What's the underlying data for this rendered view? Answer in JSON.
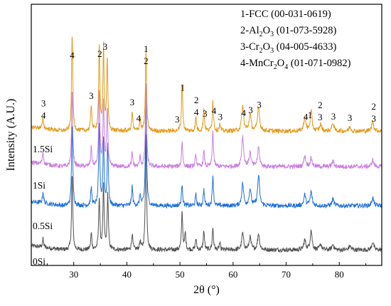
{
  "chart_data": {
    "type": "line",
    "xlabel": "2θ (°)",
    "ylabel": "Intensity (A.U.)",
    "xlim": [
      22,
      88
    ],
    "xticks": [
      "30",
      "40",
      "50",
      "60",
      "70",
      "80"
    ],
    "yticks": [],
    "grid": false,
    "legend_position": "top-right",
    "legend": [
      {
        "index": "1",
        "sep": "-",
        "phase": "FCC",
        "sub": "",
        "post": "",
        "card": " (00-031-0619)"
      },
      {
        "index": "2",
        "sep": "-",
        "phase": "Al",
        "sub": "2",
        "post": "O",
        "sub2": "3",
        "card": " (01-073-5928)"
      },
      {
        "index": "3",
        "sep": "-",
        "phase": "Cr",
        "sub": "2",
        "post": "O",
        "sub2": "3",
        "card": " (04-005-4633)"
      },
      {
        "index": "4",
        "sep": "-",
        "phase": "MnCr",
        "sub": "2",
        "post": "O",
        "sub2": "4",
        "card": " (01-071-0982)"
      }
    ],
    "series": [
      {
        "name": "0Si",
        "color": "#505050",
        "offset": 0,
        "scale": 1.0,
        "peaks": [
          [
            24.2,
            6
          ],
          [
            29.7,
            55
          ],
          [
            33.3,
            12
          ],
          [
            34.8,
            38
          ],
          [
            35.6,
            46
          ],
          [
            36.4,
            40
          ],
          [
            41.0,
            12
          ],
          [
            42.5,
            6
          ],
          [
            43.6,
            85
          ],
          [
            50.4,
            28
          ],
          [
            51.0,
            12
          ],
          [
            53.0,
            8
          ],
          [
            54.5,
            14
          ],
          [
            56.2,
            16
          ],
          [
            57.5,
            5
          ],
          [
            61.8,
            12
          ],
          [
            63.2,
            9
          ],
          [
            64.8,
            12
          ],
          [
            73.5,
            7
          ],
          [
            74.7,
            14
          ],
          [
            76.5,
            4
          ],
          [
            78.8,
            4
          ],
          [
            82.0,
            3
          ],
          [
            86.3,
            6
          ]
        ]
      },
      {
        "name": "0.5Si",
        "color": "#1f6fd8",
        "offset": 1,
        "scale": 1.0,
        "peaks": [
          [
            24.2,
            8
          ],
          [
            29.7,
            60
          ],
          [
            33.3,
            13
          ],
          [
            34.8,
            60
          ],
          [
            35.6,
            48
          ],
          [
            36.4,
            45
          ],
          [
            41.0,
            14
          ],
          [
            42.5,
            8
          ],
          [
            43.6,
            80
          ],
          [
            50.4,
            16
          ],
          [
            53.0,
            8
          ],
          [
            54.5,
            12
          ],
          [
            56.2,
            22
          ],
          [
            61.8,
            16
          ],
          [
            63.2,
            12
          ],
          [
            64.8,
            22
          ],
          [
            73.5,
            8
          ],
          [
            74.7,
            10
          ],
          [
            78.8,
            5
          ],
          [
            86.3,
            6
          ]
        ]
      },
      {
        "name": "1Si",
        "color": "#c87fe0",
        "offset": 2,
        "scale": 1.0,
        "peaks": [
          [
            24.2,
            9
          ],
          [
            29.7,
            55
          ],
          [
            33.3,
            14
          ],
          [
            34.8,
            55
          ],
          [
            35.6,
            45
          ],
          [
            36.3,
            42
          ],
          [
            41.0,
            10
          ],
          [
            42.5,
            7
          ],
          [
            43.6,
            60
          ],
          [
            50.4,
            18
          ],
          [
            53.0,
            9
          ],
          [
            54.5,
            11
          ],
          [
            56.2,
            26
          ],
          [
            61.8,
            22
          ],
          [
            63.2,
            10
          ],
          [
            64.8,
            14
          ],
          [
            73.5,
            8
          ],
          [
            74.7,
            6
          ],
          [
            78.8,
            4
          ],
          [
            86.3,
            5
          ]
        ]
      },
      {
        "name": "1.5Si",
        "color": "#e39a1c",
        "offset": 3,
        "scale": 1.0,
        "peaks": [
          [
            24.2,
            7
          ],
          [
            29.7,
            72
          ],
          [
            33.3,
            18
          ],
          [
            34.8,
            62
          ],
          [
            35.6,
            60
          ],
          [
            36.3,
            52
          ],
          [
            41.0,
            14
          ],
          [
            42.5,
            9
          ],
          [
            43.6,
            58
          ],
          [
            50.4,
            36
          ],
          [
            53.0,
            10
          ],
          [
            54.5,
            16
          ],
          [
            56.2,
            22
          ],
          [
            57.5,
            5
          ],
          [
            61.8,
            18
          ],
          [
            63.2,
            12
          ],
          [
            64.8,
            18
          ],
          [
            73.5,
            10
          ],
          [
            74.7,
            14
          ],
          [
            76.5,
            5
          ],
          [
            78.8,
            6
          ],
          [
            82.0,
            3
          ],
          [
            86.3,
            7
          ]
        ]
      }
    ],
    "annotations": [
      {
        "x": 24.3,
        "lines": [
          "3",
          "4"
        ]
      },
      {
        "x": 33.3,
        "lines": [
          "3"
        ]
      },
      {
        "x": 29.7,
        "lines": [
          "4"
        ]
      },
      {
        "x": 34.9,
        "lines": [
          "2"
        ]
      },
      {
        "x": 35.9,
        "lines": [
          "3"
        ]
      },
      {
        "x": 41.0,
        "lines": [
          "3"
        ]
      },
      {
        "x": 42.2,
        "lines": [
          "4"
        ]
      },
      {
        "x": 43.6,
        "lines": [
          "1",
          "2"
        ]
      },
      {
        "x": 49.5,
        "lines": [
          "3"
        ]
      },
      {
        "x": 50.5,
        "lines": [
          "1"
        ]
      },
      {
        "x": 53.1,
        "lines": [
          "2",
          "4"
        ]
      },
      {
        "x": 54.7,
        "lines": [
          "3"
        ]
      },
      {
        "x": 56.4,
        "lines": [
          "4"
        ]
      },
      {
        "x": 57.6,
        "lines": [
          "3"
        ]
      },
      {
        "x": 62.0,
        "lines": [
          "4"
        ]
      },
      {
        "x": 63.3,
        "lines": [
          "3"
        ]
      },
      {
        "x": 64.9,
        "lines": [
          "3"
        ]
      },
      {
        "x": 73.7,
        "lines": [
          "4"
        ]
      },
      {
        "x": 74.5,
        "lines": [
          "1"
        ]
      },
      {
        "x": 76.4,
        "lines": [
          "2",
          "3"
        ]
      },
      {
        "x": 78.9,
        "lines": [
          "3"
        ]
      },
      {
        "x": 82.0,
        "lines": [
          "3"
        ]
      },
      {
        "x": 86.5,
        "lines": [
          "2",
          "3"
        ]
      }
    ]
  }
}
